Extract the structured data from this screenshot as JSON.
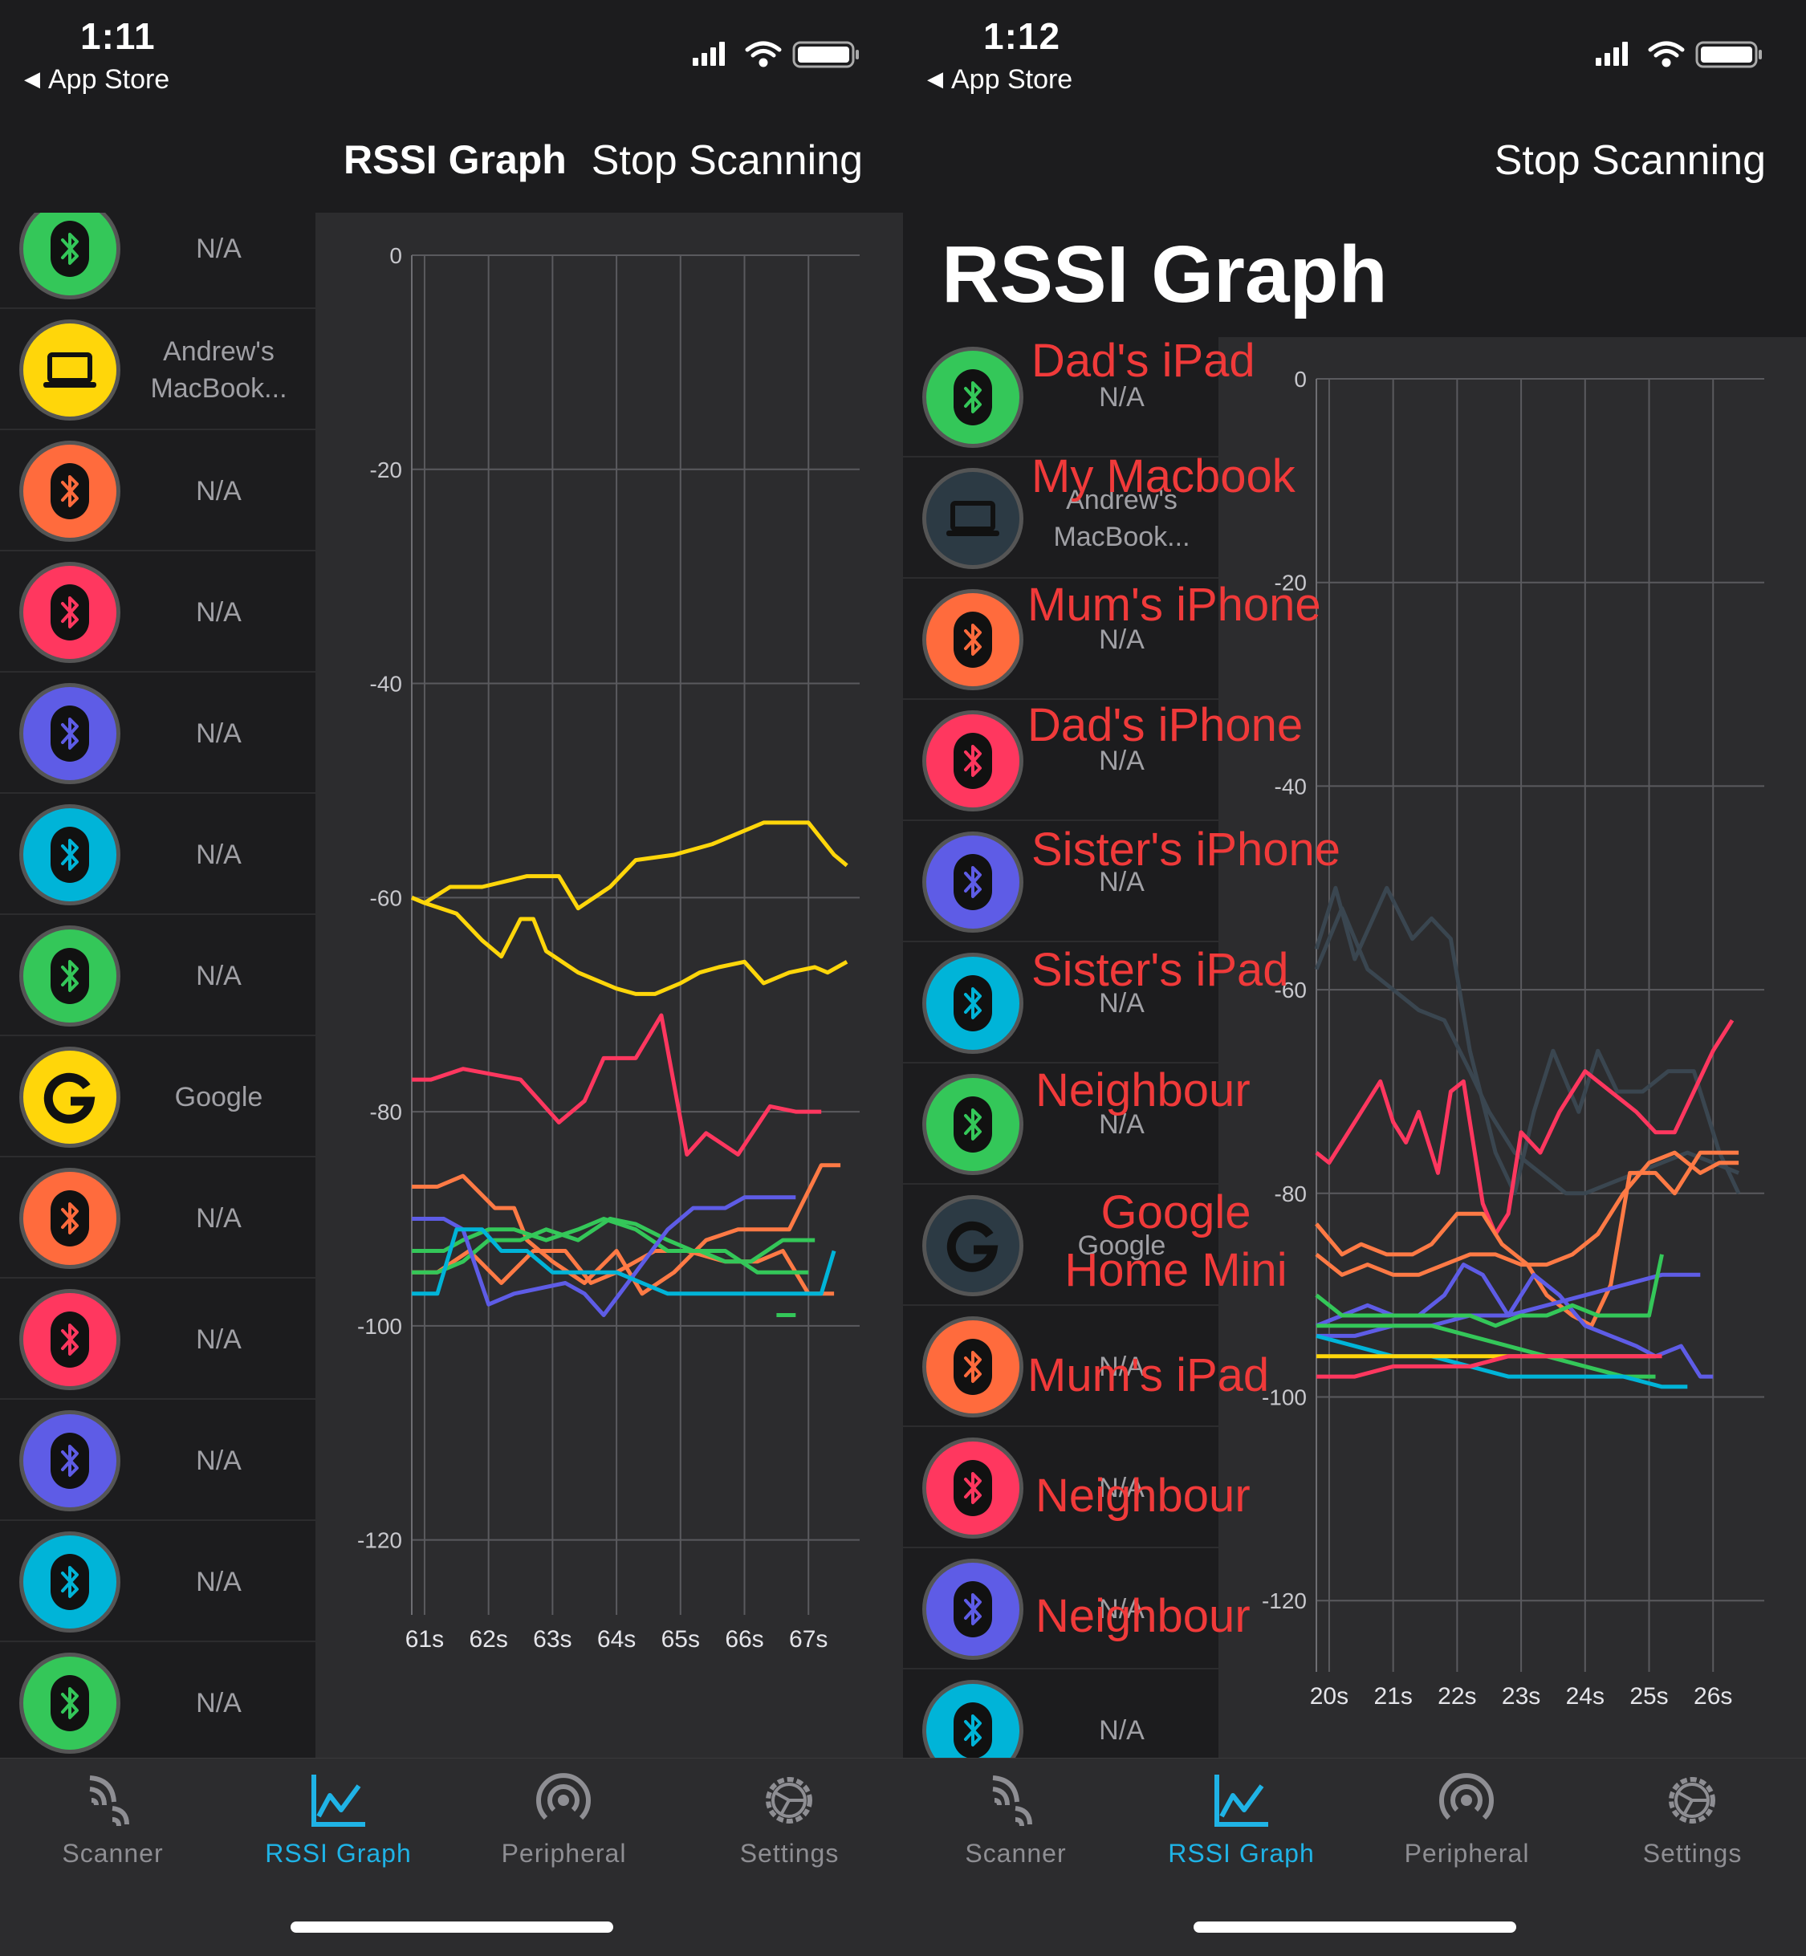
{
  "left": {
    "status": {
      "time": "1:11",
      "back": "App Store"
    },
    "nav": {
      "title": "RSSI Graph",
      "stop": "Stop Scanning"
    },
    "devices": [
      {
        "name": "N/A",
        "color": "#34c759",
        "icon": "bluetooth-icon"
      },
      {
        "name": "Andrew's MacBook...",
        "color": "#ffd60a",
        "icon": "laptop-icon"
      },
      {
        "name": "N/A",
        "color": "#ff6b3d",
        "icon": "bluetooth-icon"
      },
      {
        "name": "N/A",
        "color": "#ff375f",
        "icon": "bluetooth-icon"
      },
      {
        "name": "N/A",
        "color": "#5e5ce6",
        "icon": "bluetooth-icon"
      },
      {
        "name": "N/A",
        "color": "#00b4d8",
        "icon": "bluetooth-icon"
      },
      {
        "name": "N/A",
        "color": "#34c759",
        "icon": "bluetooth-icon"
      },
      {
        "name": "Google",
        "color": "#ffd60a",
        "icon": "google-icon"
      },
      {
        "name": "N/A",
        "color": "#ff6b3d",
        "icon": "bluetooth-icon"
      },
      {
        "name": "N/A",
        "color": "#ff375f",
        "icon": "bluetooth-icon"
      },
      {
        "name": "N/A",
        "color": "#5e5ce6",
        "icon": "bluetooth-icon"
      },
      {
        "name": "N/A",
        "color": "#00b4d8",
        "icon": "bluetooth-icon"
      },
      {
        "name": "N/A",
        "color": "#34c759",
        "icon": "bluetooth-icon"
      }
    ]
  },
  "right": {
    "status": {
      "time": "1:12",
      "back": "App Store"
    },
    "nav": {
      "title": "RSSI Graph",
      "stop": "Stop Scanning"
    },
    "devices": [
      {
        "name": "N/A",
        "color": "#34c759",
        "icon": "bluetooth-icon"
      },
      {
        "name": "Andrew's MacBook...",
        "color": "#2c3a44",
        "icon": "laptop-icon"
      },
      {
        "name": "N/A",
        "color": "#ff6b3d",
        "icon": "bluetooth-icon"
      },
      {
        "name": "N/A",
        "color": "#ff375f",
        "icon": "bluetooth-icon"
      },
      {
        "name": "N/A",
        "color": "#5e5ce6",
        "icon": "bluetooth-icon"
      },
      {
        "name": "N/A",
        "color": "#00b4d8",
        "icon": "bluetooth-icon"
      },
      {
        "name": "N/A",
        "color": "#34c759",
        "icon": "bluetooth-icon"
      },
      {
        "name": "Google",
        "color": "#2c3a44",
        "icon": "google-icon"
      },
      {
        "name": "N/A",
        "color": "#ff6b3d",
        "icon": "bluetooth-icon"
      },
      {
        "name": "N/A",
        "color": "#ff375f",
        "icon": "bluetooth-icon"
      },
      {
        "name": "N/A",
        "color": "#5e5ce6",
        "icon": "bluetooth-icon"
      },
      {
        "name": "N/A",
        "color": "#00b4d8",
        "icon": "bluetooth-icon"
      }
    ],
    "annotations": [
      "Dad's iPad",
      "My Macbook",
      "Mum's iPhone",
      "Dad's iPhone",
      "Sister's iPhone",
      "Sister's iPad",
      "Neighbour",
      "Google Home Mini",
      "Mum's iPad",
      "Neighbour",
      "Neighbour"
    ]
  },
  "tabs": [
    {
      "label": "Scanner",
      "icon": "scanner-icon",
      "active": false
    },
    {
      "label": "RSSI Graph",
      "icon": "graph-icon",
      "active": true
    },
    {
      "label": "Peripheral",
      "icon": "peripheral-icon",
      "active": false
    },
    {
      "label": "Settings",
      "icon": "settings-gear-icon",
      "active": false
    }
  ],
  "chart_data": [
    {
      "type": "line",
      "ylim": [
        -127,
        0
      ],
      "yticks": [
        0,
        -20,
        -40,
        -60,
        -80,
        -100,
        -120
      ],
      "xticks": [
        "61s",
        "62s",
        "63s",
        "64s",
        "65s",
        "66s",
        "67s"
      ],
      "xlim": [
        60.8,
        67.8
      ],
      "series": [
        {
          "color": "#ffd60a",
          "x": [
            60.8,
            61,
            61.4,
            61.9,
            62.6,
            63.1,
            63.4,
            63.9,
            64.3,
            64.9,
            65.5,
            66.3,
            67.0,
            67.4,
            67.6
          ],
          "y": [
            -60,
            -60.5,
            -59,
            -59,
            -58,
            -58,
            -61,
            -59,
            -56.5,
            -56,
            -55,
            -53,
            -53,
            -56,
            -57
          ]
        },
        {
          "color": "#ffd60a",
          "x": [
            60.8,
            61,
            61.5,
            61.9,
            62.2,
            62.5,
            62.7,
            62.9,
            63.4,
            64.0,
            64.3,
            64.6,
            65.0,
            65.3,
            65.6,
            66.0,
            66.3,
            66.7,
            67.1,
            67.3,
            67.6
          ],
          "y": [
            -60,
            -60.5,
            -61.5,
            -64,
            -65.5,
            -62,
            -62,
            -65,
            -67,
            -68.5,
            -69,
            -69,
            -68,
            -67,
            -66.5,
            -66,
            -68,
            -67,
            -66.5,
            -67,
            -66
          ]
        },
        {
          "color": "#ff375f",
          "x": [
            60.8,
            61.1,
            61.6,
            62.5,
            62.8,
            63.1,
            63.5,
            63.8,
            63.9,
            64.3,
            64.7,
            65.1,
            65.4,
            65.9,
            66.4,
            66.8,
            67.2
          ],
          "y": [
            -77,
            -77,
            -76,
            -77,
            -79,
            -81,
            -79,
            -75,
            -75,
            -75,
            -71,
            -84,
            -82,
            -84,
            -79.5,
            -80,
            -80
          ]
        },
        {
          "color": "#ff7a45",
          "x": [
            60.8,
            61.2,
            61.6,
            62.1,
            62.4,
            62.6,
            63.0,
            63.5,
            64.0,
            64.4,
            64.9,
            65.4,
            65.9,
            66.3,
            66.7,
            67.2,
            67.5
          ],
          "y": [
            -87,
            -87,
            -86,
            -89,
            -89,
            -92,
            -94,
            -96,
            -93,
            -97,
            -95,
            -92,
            -91,
            -91,
            -91,
            -85,
            -85
          ]
        },
        {
          "color": "#ff7a45",
          "x": [
            60.8,
            61.2,
            61.7,
            62.2,
            62.7,
            63.2,
            63.6,
            64.0,
            64.6,
            65.1,
            65.7,
            66.2,
            66.6,
            67.0,
            67.4
          ],
          "y": [
            -95,
            -95,
            -93,
            -96,
            -93,
            -93,
            -96,
            -95,
            -93,
            -93,
            -94,
            -94,
            -93,
            -97,
            -97
          ]
        },
        {
          "color": "#34c759",
          "x": [
            60.8,
            61.3,
            61.6,
            62.0,
            62.4,
            62.9,
            63.4,
            63.8,
            64.3,
            64.8,
            65.3,
            65.7,
            66.1,
            66.6,
            67.1
          ],
          "y": [
            -93,
            -93,
            -92,
            -91,
            -91,
            -92,
            -91,
            -90,
            -91,
            -93,
            -93,
            -94,
            -94,
            -92,
            -92
          ]
        },
        {
          "color": "#34c759",
          "x": [
            60.8,
            61.2,
            61.6,
            62.0,
            62.5,
            62.9,
            63.4,
            63.9,
            64.3,
            64.8,
            65.2,
            65.7,
            66.2,
            66.6,
            67.0
          ],
          "y": [
            -95,
            -95,
            -94,
            -92,
            -92,
            -91,
            -92,
            -90,
            -90.5,
            -92,
            -93,
            -93,
            -95,
            -95,
            -95
          ]
        },
        {
          "color": "#5e5ce6",
          "x": [
            60.8,
            61.3,
            61.6,
            62.0,
            62.4,
            63.2,
            63.5,
            63.8,
            64.3,
            64.8,
            65.2,
            65.7,
            66.0,
            66.4,
            66.8
          ],
          "y": [
            -90,
            -90,
            -91,
            -98,
            -97,
            -96,
            -97,
            -99,
            -95,
            -91,
            -89,
            -89,
            -88,
            -88,
            -88
          ]
        },
        {
          "color": "#00b4d8",
          "x": [
            60.8,
            61.2,
            61.5,
            61.9,
            62.2,
            62.6,
            63.0,
            63.5,
            64.0,
            64.4,
            64.8,
            65.3,
            65.8,
            66.3,
            66.8,
            67.2,
            67.4
          ],
          "y": [
            -97,
            -97,
            -91,
            -91,
            -93,
            -93,
            -95,
            -95,
            -95,
            -96,
            -97,
            -97,
            -97,
            -97,
            -97,
            -97,
            -93
          ]
        },
        {
          "color": "#34c759",
          "x": [
            66.5,
            66.8
          ],
          "y": [
            -99,
            -99
          ]
        }
      ]
    },
    {
      "type": "line",
      "ylim": [
        -127,
        0
      ],
      "yticks": [
        0,
        -20,
        -40,
        -60,
        -80,
        -100,
        -120
      ],
      "xticks": [
        "20s",
        "21s",
        "22s",
        "23s",
        "24s",
        "25s",
        "26s"
      ],
      "xlim": [
        19.8,
        26.8
      ],
      "series": [
        {
          "color": "#3a4650",
          "x": [
            19.8,
            20.1,
            20.4,
            20.9,
            21.3,
            21.6,
            21.9,
            22.2,
            22.6,
            22.9,
            23.2,
            23.5,
            23.9,
            24.2,
            24.5,
            24.9,
            25.3,
            25.7,
            26.1,
            26.4
          ],
          "y": [
            -56,
            -50,
            -57,
            -50,
            -55,
            -53,
            -55,
            -66,
            -76,
            -80,
            -72,
            -66,
            -72,
            -66,
            -70,
            -70,
            -68,
            -68,
            -76,
            -80
          ]
        },
        {
          "color": "#3a4650",
          "x": [
            19.8,
            20.2,
            20.6,
            21.0,
            21.4,
            21.8,
            22.2,
            22.5,
            22.9,
            23.3,
            23.7,
            24.0,
            24.4,
            24.8,
            25.2,
            25.6,
            26.0,
            26.4
          ],
          "y": [
            -58,
            -52,
            -58,
            -60,
            -62,
            -63,
            -68,
            -72,
            -76,
            -78,
            -80,
            -80,
            -79,
            -78,
            -77,
            -76,
            -77,
            -78
          ]
        },
        {
          "color": "#ff375f",
          "x": [
            19.8,
            20.0,
            20.2,
            20.5,
            20.8,
            21.0,
            21.2,
            21.4,
            21.7,
            21.9,
            22.1,
            22.4,
            22.6,
            22.8,
            23.0,
            23.3,
            23.6,
            24.0,
            24.4,
            24.8,
            25.1,
            25.4,
            25.7,
            26.0,
            26.3
          ],
          "y": [
            -76,
            -77,
            -75,
            -72,
            -69,
            -73,
            -75,
            -72,
            -78,
            -70,
            -69,
            -81,
            -84,
            -82,
            -74,
            -76,
            -72,
            -68,
            -70,
            -72,
            -74,
            -74,
            -70,
            -66,
            -63
          ]
        },
        {
          "color": "#ff7a45",
          "x": [
            19.8,
            20.2,
            20.5,
            20.9,
            21.3,
            21.6,
            22.0,
            22.4,
            22.7,
            23.1,
            23.4,
            23.8,
            24.1,
            24.4,
            24.7,
            25.1,
            25.4,
            25.8,
            26.1,
            26.4
          ],
          "y": [
            -83,
            -86,
            -85,
            -86,
            -86,
            -85,
            -82,
            -82,
            -85,
            -87,
            -90,
            -92,
            -93,
            -89,
            -78,
            -78,
            -80,
            -76,
            -76,
            -76
          ]
        },
        {
          "color": "#ff7a45",
          "x": [
            19.8,
            20.2,
            20.6,
            21.0,
            21.4,
            21.8,
            22.2,
            22.6,
            23.0,
            23.4,
            23.8,
            24.2,
            24.6,
            25.0,
            25.4,
            25.8,
            26.1,
            26.4
          ],
          "y": [
            -86,
            -88,
            -87,
            -88,
            -88,
            -87,
            -86,
            -86,
            -87,
            -87,
            -86,
            -84,
            -80,
            -77,
            -76,
            -78,
            -77,
            -77
          ]
        },
        {
          "color": "#5e5ce6",
          "x": [
            19.8,
            20.2,
            20.6,
            21.0,
            21.4,
            21.8,
            22.1,
            22.4,
            22.8,
            23.2,
            23.6,
            24.0,
            24.4,
            24.8,
            25.1,
            25.5,
            25.8,
            26.0
          ],
          "y": [
            -93,
            -92,
            -91,
            -92,
            -92,
            -90,
            -87,
            -88,
            -92,
            -88,
            -90,
            -93,
            -94,
            -95,
            -96,
            -95,
            -98,
            -98
          ]
        },
        {
          "color": "#5e5ce6",
          "x": [
            19.8,
            20.4,
            21.0,
            21.6,
            22.2,
            22.8,
            23.4,
            24.0,
            24.6,
            25.2,
            25.8
          ],
          "y": [
            -94,
            -94,
            -93,
            -93,
            -92,
            -92,
            -91,
            -90,
            -89,
            -88,
            -88
          ]
        },
        {
          "color": "#34c759",
          "x": [
            19.8,
            20.2,
            20.6,
            21.0,
            21.4,
            21.8,
            22.2,
            22.6,
            23.0,
            23.4,
            23.8,
            24.2,
            24.6,
            25.0,
            25.2
          ],
          "y": [
            -90,
            -92,
            -92,
            -92,
            -92,
            -92,
            -92,
            -93,
            -92,
            -92,
            -91,
            -92,
            -92,
            -92,
            -86
          ]
        },
        {
          "color": "#34c759",
          "x": [
            19.8,
            20.4,
            21.0,
            21.6,
            22.2,
            22.8,
            23.4,
            24.0,
            24.6,
            25.1
          ],
          "y": [
            -93,
            -93,
            -93,
            -93,
            -94,
            -95,
            -96,
            -97,
            -98,
            -98
          ]
        },
        {
          "color": "#00b4d8",
          "x": [
            19.8,
            20.4,
            21.0,
            21.6,
            22.2,
            22.8,
            23.4,
            24.0,
            24.6,
            25.2,
            25.6
          ],
          "y": [
            -94,
            -95,
            -96,
            -96,
            -97,
            -98,
            -98,
            -98,
            -98,
            -99,
            -99
          ]
        },
        {
          "color": "#ffd60a",
          "x": [
            19.8,
            20.4,
            21.0,
            21.6,
            22.2,
            22.8,
            23.4,
            24.0,
            24.6,
            25.1
          ],
          "y": [
            -96,
            -96,
            -96,
            -96,
            -96,
            -96,
            -96,
            -96,
            -96,
            -96
          ]
        },
        {
          "color": "#ff375f",
          "x": [
            19.8,
            20.4,
            21.0,
            21.6,
            22.2,
            22.8,
            23.4,
            24.0,
            24.6,
            25.2
          ],
          "y": [
            -98,
            -98,
            -97,
            -97,
            -97,
            -96,
            -96,
            -96,
            -96,
            -96
          ]
        }
      ]
    }
  ]
}
